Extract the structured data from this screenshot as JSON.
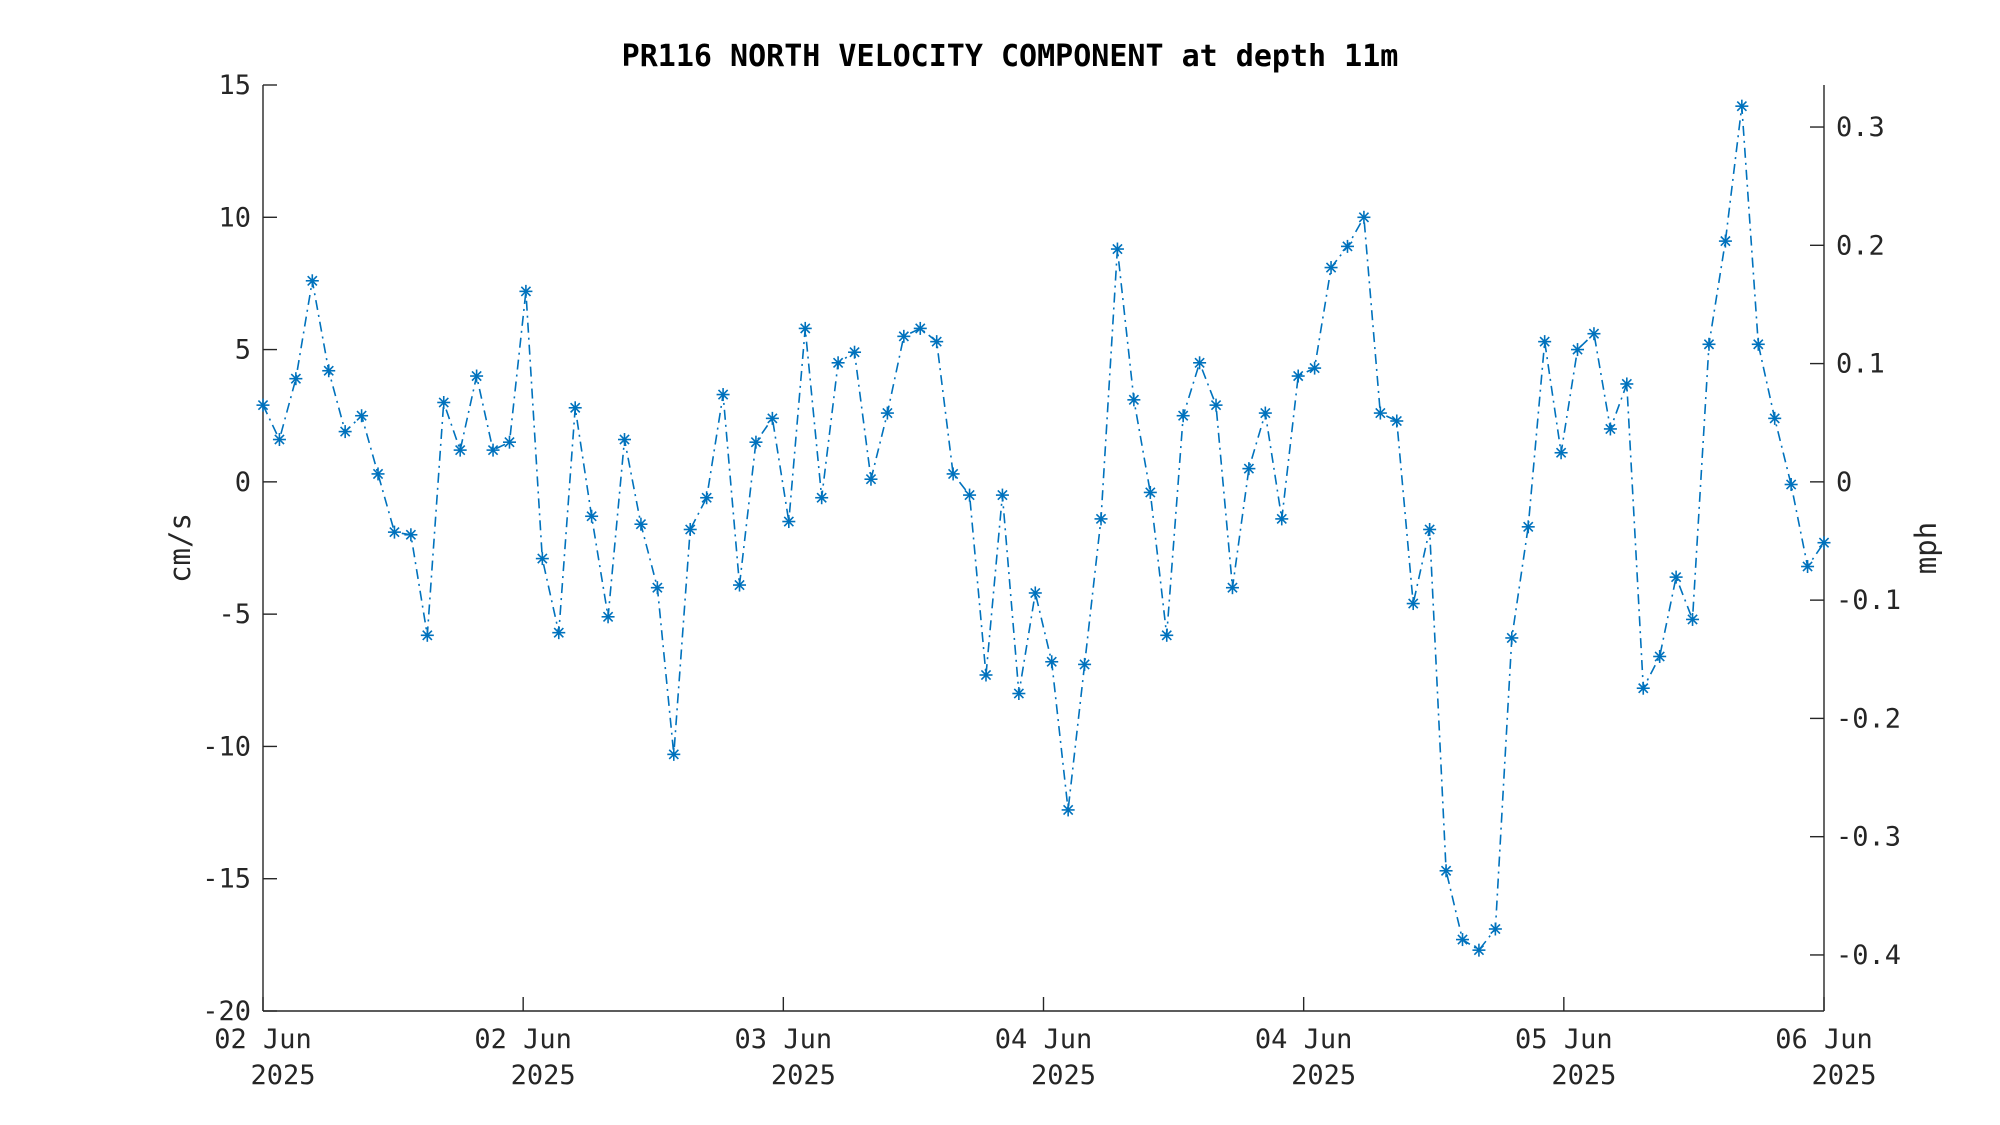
{
  "chart_data": {
    "type": "line",
    "title": "PR116 NORTH VELOCITY COMPONENT at depth 11m",
    "ylabel": "cm/s",
    "ylabel_right": "mph",
    "ylim": [
      -20,
      15
    ],
    "y_ticks": [
      15,
      10,
      5,
      0,
      -5,
      -10,
      -15,
      -20
    ],
    "y_tick_labels": [
      "15",
      "10",
      "5",
      "0",
      "-5",
      "-10",
      "-15",
      "-20"
    ],
    "y2_ticks": [
      0.3,
      0.2,
      0.1,
      0,
      -0.1,
      -0.2,
      -0.3,
      -0.4
    ],
    "y2_tick_labels": [
      "0.3",
      "0.2",
      "0.1",
      "0",
      "-0.1",
      "-0.2",
      "-0.3",
      "-0.4"
    ],
    "x_tick_labels": [
      {
        "day": "02 Jun",
        "year": "2025"
      },
      {
        "day": "02 Jun",
        "year": "2025"
      },
      {
        "day": "03 Jun",
        "year": "2025"
      },
      {
        "day": "04 Jun",
        "year": "2025"
      },
      {
        "day": "04 Jun",
        "year": "2025"
      },
      {
        "day": "05 Jun",
        "year": "2025"
      },
      {
        "day": "06 Jun",
        "year": "2025"
      }
    ],
    "grid": false,
    "marker": "asterisk",
    "line_style": "dash-dot",
    "color": "#0072bd",
    "series": [
      {
        "values": [
          2.9,
          1.6,
          3.9,
          7.6,
          4.2,
          1.9,
          2.5,
          0.3,
          -1.9,
          -2.0,
          -5.8,
          3.0,
          1.2,
          4.0,
          1.2,
          1.5,
          7.2,
          -2.9,
          -5.7,
          2.8,
          -1.3,
          -5.1,
          1.6,
          -1.6,
          -4.0,
          -10.3,
          -1.8,
          -0.6,
          3.3,
          -3.9,
          1.5,
          2.4,
          -1.5,
          5.8,
          -0.6,
          4.5,
          4.9,
          0.1,
          2.6,
          5.5,
          5.8,
          5.3,
          0.3,
          -0.5,
          -7.3,
          -0.5,
          -8.0,
          -4.2,
          -6.8,
          -12.4,
          -6.9,
          -1.4,
          8.8,
          3.1,
          -0.4,
          -5.8,
          2.5,
          4.5,
          2.9,
          -4.0,
          0.5,
          2.6,
          -1.4,
          4.0,
          4.3,
          8.1,
          8.9,
          10.0,
          2.6,
          2.3,
          -4.6,
          -1.8,
          -14.7,
          -17.3,
          -17.7,
          -16.9,
          -5.9,
          -1.7,
          5.3,
          1.1,
          5.0,
          5.6,
          2.0,
          3.7,
          -7.8,
          -6.6,
          -3.6,
          -5.2,
          5.2,
          9.1,
          14.2,
          5.2,
          2.4,
          -0.1,
          -3.2,
          -2.3
        ]
      }
    ]
  }
}
